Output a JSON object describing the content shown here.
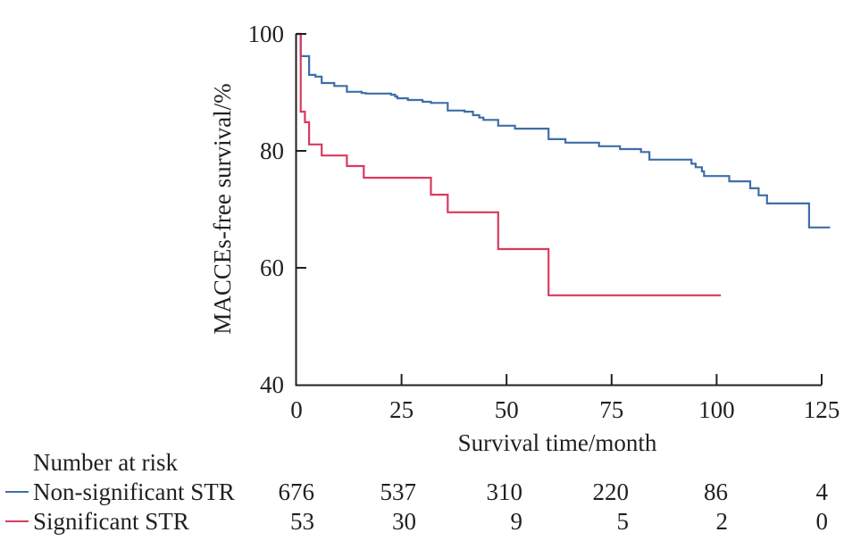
{
  "chart_data": {
    "type": "line",
    "subtype": "kaplan-meier step",
    "title": "",
    "xlabel": "Survival time/month",
    "ylabel": "MACCEs-free survival/%",
    "xlim": [
      0,
      125
    ],
    "ylim": [
      40,
      100
    ],
    "x_ticks": [
      0,
      25,
      50,
      75,
      100,
      125
    ],
    "y_ticks": [
      40,
      60,
      80,
      100
    ],
    "grid": false,
    "series": [
      {
        "name": "Non-significant STR",
        "color": "#3f6ea8",
        "t": [
          0,
          1,
          3,
          4.5,
          6,
          9,
          12,
          15.5,
          16.5,
          22.5,
          23.5,
          24,
          26.5,
          30,
          32,
          36,
          40,
          42,
          43.5,
          44.5,
          48,
          52,
          60,
          64,
          72,
          77,
          82,
          84,
          94,
          95,
          96.5,
          97,
          103,
          108,
          110,
          112,
          122,
          127
        ],
        "survival": [
          100,
          96.2,
          93.0,
          92.7,
          91.6,
          91.1,
          90.1,
          89.9,
          89.8,
          89.6,
          89.3,
          89.0,
          88.7,
          88.4,
          88.2,
          86.9,
          86.7,
          86.1,
          85.7,
          85.3,
          84.3,
          83.8,
          82.0,
          81.4,
          80.8,
          80.3,
          79.8,
          78.5,
          77.8,
          77.2,
          76.5,
          75.7,
          74.8,
          73.6,
          72.4,
          71.0,
          66.9,
          66.9
        ]
      },
      {
        "name": "Significant STR",
        "color": "#d83a5e",
        "t": [
          0,
          1,
          2,
          3,
          6,
          12,
          16,
          32,
          36,
          48,
          60,
          101
        ],
        "survival": [
          100,
          86.7,
          84.9,
          81.1,
          79.2,
          77.4,
          75.4,
          72.5,
          69.5,
          63.2,
          55.3,
          55.3
        ]
      }
    ],
    "risk_table": {
      "title": "Number at risk",
      "times": [
        0,
        25,
        50,
        75,
        100,
        125
      ],
      "rows": [
        {
          "label": "Non-significant STR",
          "color": "#3f6ea8",
          "values": [
            "676",
            "537",
            "310",
            "220",
            "86",
            "4"
          ]
        },
        {
          "label": "Significant STR",
          "color": "#d83a5e",
          "values": [
            "53",
            "30",
            "9",
            "5",
            "2",
            "0"
          ]
        }
      ]
    }
  }
}
